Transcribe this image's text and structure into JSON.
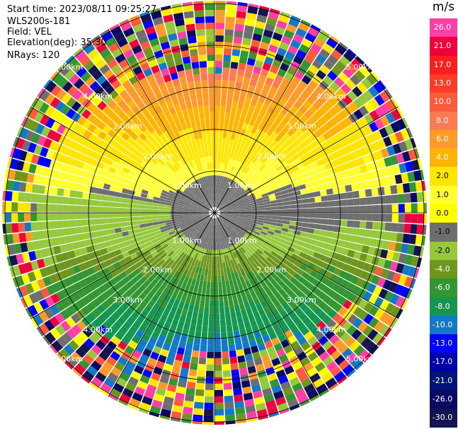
{
  "header": {
    "start_time": "Start time: 2023/08/11 09:25:27",
    "instrument": "WLS200s-181",
    "field": "Field: VEL",
    "elevation": "Elevation(deg): 35.30",
    "nrays": "NRays: 120"
  },
  "colorbar": {
    "unit": "m/s",
    "labels": [
      "26.0",
      "21.0",
      "17.0",
      "13.0",
      "10.0",
      "8.0",
      "6.0",
      "4.0",
      "2.0",
      "1.0",
      "0.0",
      "-1.0",
      "-2.0",
      "-4.0",
      "-6.0",
      "-8.0",
      "-10.0",
      "-13.0",
      "-17.0",
      "-21.0",
      "-26.0",
      "-30.0"
    ],
    "colors": [
      "#ff3fa6",
      "#f0003c",
      "#ff1e1e",
      "#ff3c28",
      "#ff5a3c",
      "#ff7a50",
      "#ff9a28",
      "#ffb400",
      "#ffe600",
      "#ffff32",
      "#ffff00",
      "#6e6e6e",
      "#96c83c",
      "#6e961e",
      "#329632",
      "#149650",
      "#1478c8",
      "#0000ff",
      "#0000aa",
      "#001478",
      "#0a0a64",
      "#141450"
    ]
  },
  "range_rings": [
    "1.00km",
    "2.00km",
    "3.00km",
    "4.00km",
    "5.00km"
  ]
}
